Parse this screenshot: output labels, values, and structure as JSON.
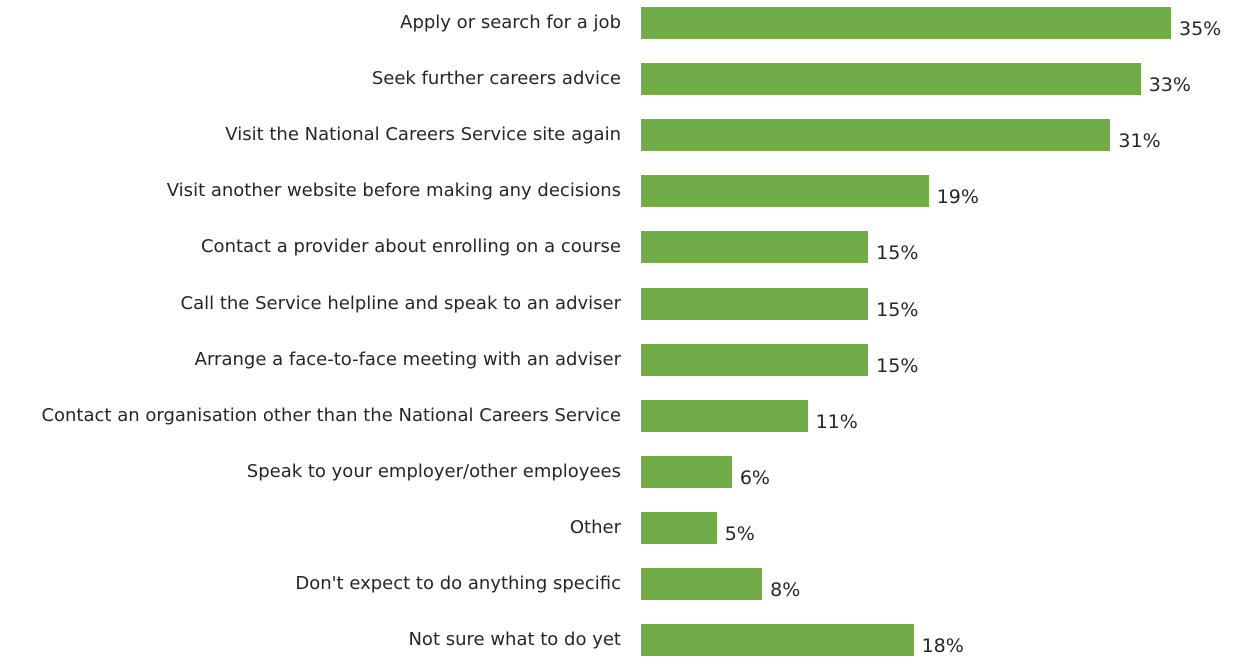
{
  "chart_data": {
    "type": "bar",
    "orientation": "horizontal",
    "categories": [
      "Apply or search for a job",
      "Seek further careers advice",
      "Visit the National Careers Service site again",
      "Visit another website before making any decisions",
      "Contact a provider about enrolling on a course",
      "Call the Service helpline and speak to an adviser",
      "Arrange a face-to-face meeting with an adviser",
      "Contact an organisation other than the National Careers Service",
      "Speak to your employer/other employees",
      "Other",
      "Don't expect to do anything specific",
      "Not sure what to do yet"
    ],
    "values": [
      35,
      33,
      31,
      19,
      15,
      15,
      15,
      11,
      6,
      5,
      8,
      18
    ],
    "value_labels": [
      "35%",
      "33%",
      "31%",
      "19%",
      "15%",
      "15%",
      "15%",
      "11%",
      "6%",
      "5%",
      "8%",
      "18%"
    ],
    "unit": "%",
    "color": "#70ad47",
    "xlim": [
      0,
      35
    ],
    "grid": false,
    "legend": "none"
  }
}
